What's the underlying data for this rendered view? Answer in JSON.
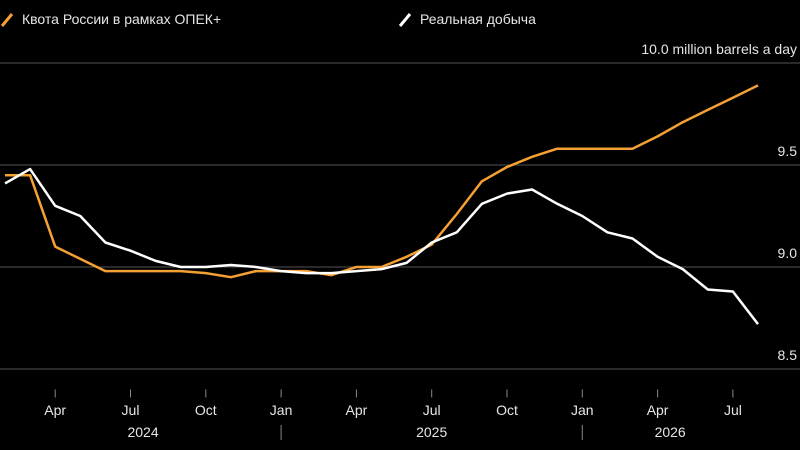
{
  "chart_data": {
    "type": "line",
    "categories": [
      "2024-02",
      "2024-03",
      "2024-04",
      "2024-05",
      "2024-06",
      "2024-07",
      "2024-08",
      "2024-09",
      "2024-10",
      "2024-11",
      "2024-12",
      "2025-01",
      "2025-02",
      "2025-03",
      "2025-04",
      "2025-05",
      "2025-06",
      "2025-07",
      "2025-08",
      "2025-09",
      "2025-10",
      "2025-11",
      "2025-12",
      "2026-01",
      "2026-02",
      "2026-03",
      "2026-04",
      "2026-05",
      "2026-06",
      "2026-07",
      "2026-08"
    ],
    "series": [
      {
        "name": "Квота России в рамках ОПЕК+",
        "color": "#f5a033",
        "values": [
          9.45,
          9.45,
          9.1,
          9.04,
          8.98,
          8.98,
          8.98,
          8.98,
          8.97,
          8.95,
          8.98,
          8.98,
          8.98,
          8.96,
          9.0,
          9.0,
          9.05,
          9.11,
          9.26,
          9.42,
          9.49,
          9.54,
          9.58,
          9.58,
          9.58,
          9.58,
          9.64,
          9.71,
          9.77,
          9.83,
          9.89
        ]
      },
      {
        "name": "Реальная добыча",
        "color": "#ffffff",
        "values": [
          9.41,
          9.48,
          9.3,
          9.25,
          9.12,
          9.08,
          9.03,
          9.0,
          9.0,
          9.01,
          9.0,
          8.98,
          8.97,
          8.97,
          8.98,
          8.99,
          9.02,
          9.12,
          9.17,
          9.31,
          9.36,
          9.38,
          9.31,
          9.25,
          9.17,
          9.14,
          9.05,
          8.99,
          8.89,
          8.88,
          8.72
        ]
      }
    ],
    "ylim": [
      8.38,
      10.0
    ],
    "yticks": [
      {
        "value": 10.0,
        "label": "10.0 million barrels a day"
      },
      9.5,
      {
        "value": 9.0,
        "label": "9.0"
      },
      8.5
    ],
    "xticks": [
      {
        "value": "2024-04",
        "label": "Apr"
      },
      {
        "value": "2024-07",
        "label": "Jul"
      },
      {
        "value": "2024-10",
        "label": "Oct"
      },
      {
        "value": "2025-01",
        "label": "Jan"
      },
      {
        "value": "2025-04",
        "label": "Apr"
      },
      {
        "value": "2025-07",
        "label": "Jul"
      },
      {
        "value": "2025-10",
        "label": "Oct"
      },
      {
        "value": "2026-01",
        "label": "Jan"
      },
      {
        "value": "2026-04",
        "label": "Apr"
      },
      {
        "value": "2026-07",
        "label": "Jul"
      }
    ],
    "years": [
      "2024",
      "2025",
      "2026"
    ],
    "grid": true
  }
}
